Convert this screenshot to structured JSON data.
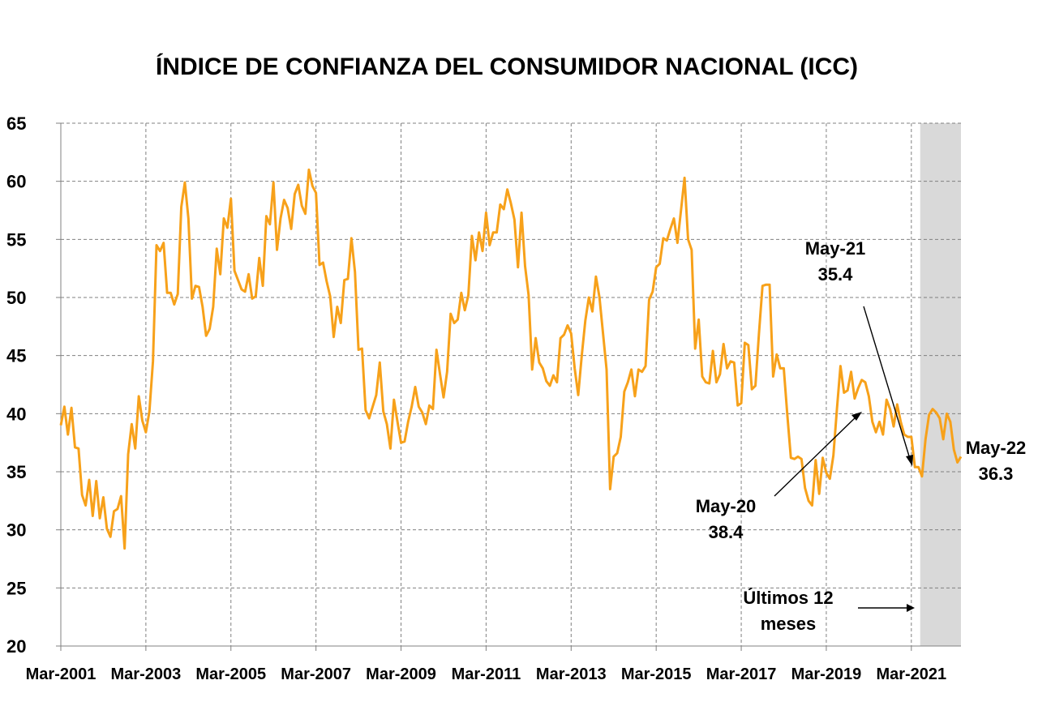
{
  "chart_data": {
    "type": "line",
    "title": "ÍNDICE DE CONFIANZA DEL CONSUMIDOR NACIONAL (ICC)",
    "xlabel": "",
    "ylabel": "",
    "ylim": [
      20,
      65
    ],
    "yticks": [
      20,
      25,
      30,
      35,
      40,
      45,
      50,
      55,
      60,
      65
    ],
    "x_tick_labels": [
      "Mar-2001",
      "Mar-2003",
      "Mar-2005",
      "Mar-2007",
      "Mar-2009",
      "Mar-2011",
      "Mar-2013",
      "Mar-2015",
      "Mar-2017",
      "Mar-2019",
      "Mar-2021"
    ],
    "x_start": "Mar-2001",
    "x_end": "May-2022",
    "grid": true,
    "line_color": "#F7A11A",
    "shade_color": "#D9D9D9",
    "shaded_range": [
      "Jun-2021",
      "May-2022"
    ],
    "series": [
      {
        "x": [
          "Mar-2001",
          "Apr-2001",
          "May-2001",
          "Jun-2001",
          "Jul-2001",
          "Aug-2001",
          "Sep-2001",
          "Oct-2001",
          "Nov-2001",
          "Dec-2001",
          "Jan-2002",
          "Feb-2002",
          "Mar-2002",
          "Apr-2002",
          "May-2002",
          "Jun-2002",
          "Jul-2002",
          "Aug-2002",
          "Sep-2002",
          "Oct-2002",
          "Nov-2002",
          "Dec-2002",
          "Jan-2003",
          "Feb-2003",
          "Mar-2003",
          "Apr-2003",
          "May-2003",
          "Jun-2003",
          "Jul-2003",
          "Aug-2003",
          "Sep-2003",
          "Oct-2003",
          "Nov-2003",
          "Dec-2003",
          "Jan-2004",
          "Feb-2004",
          "Mar-2004",
          "Apr-2004",
          "May-2004",
          "Jun-2004",
          "Jul-2004",
          "Aug-2004",
          "Sep-2004",
          "Oct-2004",
          "Nov-2004",
          "Dec-2004",
          "Jan-2005",
          "Feb-2005",
          "Mar-2005",
          "Apr-2005",
          "May-2005",
          "Jun-2005",
          "Jul-2005",
          "Aug-2005",
          "Sep-2005",
          "Oct-2005",
          "Nov-2005",
          "Dec-2005",
          "Jan-2006",
          "Feb-2006",
          "Mar-2006",
          "Apr-2006",
          "May-2006",
          "Jun-2006",
          "Jul-2006",
          "Aug-2006",
          "Sep-2006",
          "Oct-2006",
          "Nov-2006",
          "Dec-2006",
          "Jan-2007",
          "Feb-2007",
          "Mar-2007",
          "Apr-2007",
          "May-2007",
          "Jun-2007",
          "Jul-2007",
          "Aug-2007",
          "Sep-2007",
          "Oct-2007",
          "Nov-2007",
          "Dec-2007",
          "Jan-2008",
          "Feb-2008",
          "Mar-2008",
          "Apr-2008",
          "May-2008",
          "Jun-2008",
          "Jul-2008",
          "Aug-2008",
          "Sep-2008",
          "Oct-2008",
          "Nov-2008",
          "Dec-2008",
          "Jan-2009",
          "Feb-2009",
          "Mar-2009",
          "Apr-2009",
          "May-2009",
          "Jun-2009",
          "Jul-2009",
          "Aug-2009",
          "Sep-2009",
          "Oct-2009",
          "Nov-2009",
          "Dec-2009",
          "Jan-2010",
          "Feb-2010",
          "Mar-2010",
          "Apr-2010",
          "May-2010",
          "Jun-2010",
          "Jul-2010",
          "Aug-2010",
          "Sep-2010",
          "Oct-2010",
          "Nov-2010",
          "Dec-2010",
          "Jan-2011",
          "Feb-2011",
          "Mar-2011",
          "Apr-2011",
          "May-2011",
          "Jun-2011",
          "Jul-2011",
          "Aug-2011",
          "Sep-2011",
          "Oct-2011",
          "Nov-2011",
          "Dec-2011",
          "Jan-2012",
          "Feb-2012",
          "Mar-2012",
          "Apr-2012",
          "May-2012",
          "Jun-2012",
          "Jul-2012",
          "Aug-2012",
          "Sep-2012",
          "Oct-2012",
          "Nov-2012",
          "Dec-2012",
          "Jan-2013",
          "Feb-2013",
          "Mar-2013",
          "Apr-2013",
          "May-2013",
          "Jun-2013",
          "Jul-2013",
          "Aug-2013",
          "Sep-2013",
          "Oct-2013",
          "Nov-2013",
          "Dec-2013",
          "Jan-2014",
          "Feb-2014",
          "Mar-2014",
          "Apr-2014",
          "May-2014",
          "Jun-2014",
          "Jul-2014",
          "Aug-2014",
          "Sep-2014",
          "Oct-2014",
          "Nov-2014",
          "Dec-2014",
          "Jan-2015",
          "Feb-2015",
          "Mar-2015",
          "Apr-2015",
          "May-2015",
          "Jun-2015",
          "Jul-2015",
          "Aug-2015",
          "Sep-2015",
          "Oct-2015",
          "Nov-2015",
          "Dec-2015",
          "Jan-2016",
          "Feb-2016",
          "Mar-2016",
          "Apr-2016",
          "May-2016",
          "Jun-2016",
          "Jul-2016",
          "Aug-2016",
          "Sep-2016",
          "Oct-2016",
          "Nov-2016",
          "Dec-2016",
          "Jan-2017",
          "Feb-2017",
          "Mar-2017",
          "Apr-2017",
          "May-2017",
          "Jun-2017",
          "Jul-2017",
          "Aug-2017",
          "Sep-2017",
          "Oct-2017",
          "Nov-2017",
          "Dec-2017",
          "Jan-2018",
          "Feb-2018",
          "Mar-2018",
          "Apr-2018",
          "May-2018",
          "Jun-2018",
          "Jul-2018",
          "Aug-2018",
          "Sep-2018",
          "Oct-2018",
          "Nov-2018",
          "Dec-2018",
          "Jan-2019",
          "Feb-2019",
          "Mar-2019",
          "Apr-2019",
          "May-2019",
          "Jun-2019",
          "Jul-2019",
          "Aug-2019",
          "Sep-2019",
          "Oct-2019",
          "Nov-2019",
          "Dec-2019",
          "Jan-2020",
          "Feb-2020",
          "Mar-2020",
          "Apr-2020",
          "May-2020",
          "Jun-2020",
          "Jul-2020",
          "Aug-2020",
          "Sep-2020",
          "Oct-2020",
          "Nov-2020",
          "Dec-2020",
          "Jan-2021",
          "Feb-2021",
          "Mar-2021",
          "Apr-2021",
          "May-2021",
          "Jun-2021",
          "Jul-2021",
          "Aug-2021",
          "Sep-2021",
          "Oct-2021",
          "Nov-2021",
          "Dec-2021",
          "Jan-2022",
          "Feb-2022",
          "Mar-2022",
          "Apr-2022",
          "May-2022"
        ],
        "values": [
          39.0,
          40.6,
          38.2,
          40.5,
          37.1,
          37.0,
          33.0,
          32.1,
          34.3,
          31.2,
          34.2,
          31.0,
          32.8,
          30.1,
          29.4,
          31.6,
          31.8,
          32.9,
          28.4,
          36.5,
          39.1,
          37.0,
          41.5,
          39.4,
          38.4,
          40.2,
          44.5,
          54.5,
          54.0,
          54.7,
          50.4,
          50.4,
          49.4,
          50.3,
          57.8,
          59.9,
          56.8,
          49.9,
          51.0,
          50.9,
          49.2,
          46.7,
          47.3,
          49.2,
          54.2,
          52.0,
          56.8,
          56.0,
          58.5,
          52.3,
          51.5,
          50.7,
          50.5,
          52.0,
          49.9,
          50.1,
          53.4,
          51.0,
          57.0,
          56.3,
          59.9,
          54.1,
          56.8,
          58.4,
          57.7,
          55.9,
          58.9,
          59.7,
          57.9,
          57.2,
          61.0,
          59.6,
          59.0,
          52.8,
          53.0,
          51.4,
          50.1,
          46.6,
          49.2,
          47.8,
          51.5,
          51.6,
          55.1,
          52.2,
          45.5,
          45.6,
          40.3,
          39.6,
          40.6,
          41.6,
          44.4,
          40.2,
          39.1,
          37.0,
          41.2,
          39.3,
          37.5,
          37.6,
          39.3,
          40.6,
          42.3,
          40.6,
          40.1,
          39.1,
          40.7,
          40.4,
          45.5,
          43.4,
          41.4,
          43.6,
          48.6,
          47.8,
          48.1,
          50.4,
          48.9,
          50.2,
          55.3,
          53.2,
          55.6,
          54.0,
          57.3,
          54.5,
          55.6,
          55.6,
          58.0,
          57.6,
          59.3,
          58.1,
          56.7,
          52.6,
          57.3,
          52.7,
          50.2,
          43.8,
          46.5,
          44.4,
          43.9,
          42.8,
          42.4,
          43.3,
          42.7,
          46.5,
          46.8,
          47.6,
          46.9,
          43.9,
          41.6,
          45.0,
          48.0,
          50.0,
          48.8,
          51.8,
          50.0,
          46.9,
          43.8,
          33.5,
          36.3,
          36.6,
          38.0,
          41.9,
          42.7,
          43.8,
          41.5,
          43.8,
          43.6,
          44.1,
          49.8,
          50.5,
          52.6,
          52.9,
          55.1,
          54.9,
          55.9,
          56.8,
          54.7,
          57.5,
          60.3,
          55.0,
          54.1,
          45.6,
          48.1,
          43.2,
          42.7,
          42.6,
          45.4,
          42.7,
          43.4,
          46.0,
          43.9,
          44.5,
          44.4,
          40.7,
          40.9,
          46.1,
          45.9,
          42.1,
          42.4,
          46.9,
          51.0,
          51.1,
          51.1,
          43.2,
          45.1,
          43.9,
          43.9,
          39.9,
          36.2,
          36.1,
          36.3,
          36.1,
          33.6,
          32.5,
          32.1,
          36.0,
          33.1,
          36.2,
          34.9,
          34.4,
          36.4,
          40.4,
          44.1,
          41.8,
          42.0,
          43.6,
          41.3,
          42.2,
          42.9,
          42.7,
          41.5,
          39.3,
          38.4,
          39.3,
          38.2,
          41.2,
          40.4,
          38.9,
          40.8,
          39.3,
          38.2,
          38.0,
          38.0,
          35.4,
          35.4,
          34.6,
          37.8,
          39.9,
          40.4,
          40.1,
          39.6,
          37.8,
          40.0,
          39.3,
          36.9,
          35.8,
          36.3
        ]
      }
    ],
    "annotations": [
      {
        "label": "May-20",
        "value": "38.4"
      },
      {
        "label": "May-21",
        "value": "35.4"
      },
      {
        "label": "May-22",
        "value": "36.3"
      }
    ],
    "note": "Últimos 12 meses"
  }
}
